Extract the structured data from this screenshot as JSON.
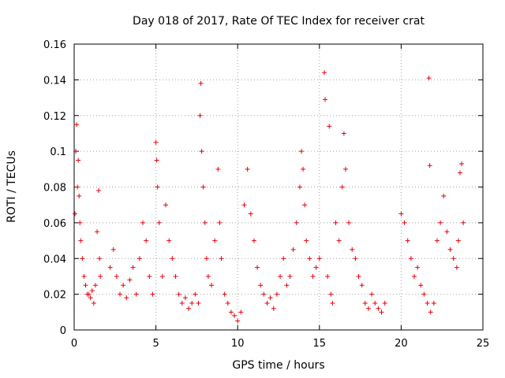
{
  "chart_data": {
    "type": "scatter",
    "title": "Day 018 of 2017, Rate Of TEC Index for receiver crat",
    "xlabel": "GPS time / hours",
    "ylabel": "ROTI / TECUs",
    "xlim": [
      0,
      25
    ],
    "ylim": [
      0,
      0.16
    ],
    "xticks": [
      0,
      5,
      10,
      15,
      20,
      25
    ],
    "xtick_labels": [
      "0",
      "5",
      "10",
      "15",
      "20",
      "25"
    ],
    "yticks": [
      0,
      0.02,
      0.04,
      0.06,
      0.08,
      0.1,
      0.12,
      0.14,
      0.16
    ],
    "ytick_labels": [
      "0",
      "0.02",
      "0.04",
      "0.06",
      "0.08",
      "0.1",
      "0.12",
      "0.14",
      "0.16"
    ],
    "grid": true,
    "marker": "plus",
    "color": "#e8000b",
    "series": [
      {
        "name": "ROTI",
        "points": [
          [
            0.05,
            0.065
          ],
          [
            0.1,
            0.1
          ],
          [
            0.15,
            0.115
          ],
          [
            0.2,
            0.08
          ],
          [
            0.25,
            0.095
          ],
          [
            0.3,
            0.075
          ],
          [
            0.35,
            0.06
          ],
          [
            0.4,
            0.05
          ],
          [
            0.5,
            0.04
          ],
          [
            0.6,
            0.03
          ],
          [
            0.7,
            0.025
          ],
          [
            0.8,
            0.02
          ],
          [
            0.9,
            0.02
          ],
          [
            1.0,
            0.018
          ],
          [
            1.1,
            0.022
          ],
          [
            1.2,
            0.015
          ],
          [
            1.3,
            0.025
          ],
          [
            1.4,
            0.055
          ],
          [
            1.5,
            0.078
          ],
          [
            1.55,
            0.04
          ],
          [
            1.6,
            0.03
          ],
          [
            2.2,
            0.035
          ],
          [
            2.4,
            0.045
          ],
          [
            2.6,
            0.03
          ],
          [
            2.8,
            0.02
          ],
          [
            3.0,
            0.025
          ],
          [
            3.2,
            0.018
          ],
          [
            3.4,
            0.028
          ],
          [
            3.6,
            0.035
          ],
          [
            3.8,
            0.02
          ],
          [
            4.0,
            0.04
          ],
          [
            4.2,
            0.06
          ],
          [
            4.4,
            0.05
          ],
          [
            4.6,
            0.03
          ],
          [
            4.8,
            0.02
          ],
          [
            5.0,
            0.105
          ],
          [
            5.05,
            0.095
          ],
          [
            5.1,
            0.08
          ],
          [
            5.2,
            0.06
          ],
          [
            5.4,
            0.03
          ],
          [
            5.6,
            0.07
          ],
          [
            5.8,
            0.05
          ],
          [
            6.0,
            0.04
          ],
          [
            6.2,
            0.03
          ],
          [
            6.4,
            0.02
          ],
          [
            6.6,
            0.015
          ],
          [
            6.8,
            0.018
          ],
          [
            7.0,
            0.012
          ],
          [
            7.2,
            0.015
          ],
          [
            7.4,
            0.02
          ],
          [
            7.6,
            0.015
          ],
          [
            7.7,
            0.12
          ],
          [
            7.75,
            0.138
          ],
          [
            7.8,
            0.1
          ],
          [
            7.9,
            0.08
          ],
          [
            8.0,
            0.06
          ],
          [
            8.1,
            0.04
          ],
          [
            8.2,
            0.03
          ],
          [
            8.4,
            0.025
          ],
          [
            8.6,
            0.05
          ],
          [
            8.8,
            0.09
          ],
          [
            8.9,
            0.06
          ],
          [
            9.0,
            0.04
          ],
          [
            9.2,
            0.02
          ],
          [
            9.4,
            0.015
          ],
          [
            9.6,
            0.01
          ],
          [
            9.8,
            0.008
          ],
          [
            10.0,
            0.005
          ],
          [
            10.2,
            0.01
          ],
          [
            10.4,
            0.07
          ],
          [
            10.6,
            0.09
          ],
          [
            10.8,
            0.065
          ],
          [
            11.0,
            0.05
          ],
          [
            11.2,
            0.035
          ],
          [
            11.4,
            0.025
          ],
          [
            11.6,
            0.02
          ],
          [
            11.8,
            0.015
          ],
          [
            12.0,
            0.018
          ],
          [
            12.2,
            0.012
          ],
          [
            12.4,
            0.02
          ],
          [
            12.6,
            0.03
          ],
          [
            12.8,
            0.04
          ],
          [
            13.0,
            0.025
          ],
          [
            13.2,
            0.03
          ],
          [
            13.4,
            0.045
          ],
          [
            13.6,
            0.06
          ],
          [
            13.8,
            0.08
          ],
          [
            13.9,
            0.1
          ],
          [
            14.0,
            0.09
          ],
          [
            14.1,
            0.07
          ],
          [
            14.2,
            0.05
          ],
          [
            14.4,
            0.04
          ],
          [
            14.6,
            0.03
          ],
          [
            14.8,
            0.035
          ],
          [
            15.0,
            0.04
          ],
          [
            15.3,
            0.144
          ],
          [
            15.35,
            0.129
          ],
          [
            15.5,
            0.03
          ],
          [
            15.6,
            0.114
          ],
          [
            15.7,
            0.02
          ],
          [
            15.8,
            0.015
          ],
          [
            16.0,
            0.06
          ],
          [
            16.2,
            0.05
          ],
          [
            16.4,
            0.08
          ],
          [
            16.5,
            0.11
          ],
          [
            16.6,
            0.09
          ],
          [
            16.8,
            0.06
          ],
          [
            17.0,
            0.045
          ],
          [
            17.2,
            0.04
          ],
          [
            17.4,
            0.03
          ],
          [
            17.6,
            0.025
          ],
          [
            17.8,
            0.015
          ],
          [
            18.0,
            0.012
          ],
          [
            18.2,
            0.02
          ],
          [
            18.4,
            0.015
          ],
          [
            18.6,
            0.012
          ],
          [
            18.8,
            0.01
          ],
          [
            19.0,
            0.015
          ],
          [
            20.0,
            0.065
          ],
          [
            20.2,
            0.06
          ],
          [
            20.4,
            0.05
          ],
          [
            20.6,
            0.04
          ],
          [
            20.8,
            0.03
          ],
          [
            21.0,
            0.035
          ],
          [
            21.2,
            0.025
          ],
          [
            21.4,
            0.02
          ],
          [
            21.6,
            0.015
          ],
          [
            21.7,
            0.141
          ],
          [
            21.75,
            0.092
          ],
          [
            21.8,
            0.01
          ],
          [
            22.0,
            0.015
          ],
          [
            22.2,
            0.05
          ],
          [
            22.4,
            0.06
          ],
          [
            22.6,
            0.075
          ],
          [
            22.8,
            0.055
          ],
          [
            23.0,
            0.045
          ],
          [
            23.2,
            0.04
          ],
          [
            23.4,
            0.035
          ],
          [
            23.5,
            0.05
          ],
          [
            23.6,
            0.088
          ],
          [
            23.7,
            0.093
          ],
          [
            23.8,
            0.06
          ]
        ]
      }
    ]
  }
}
